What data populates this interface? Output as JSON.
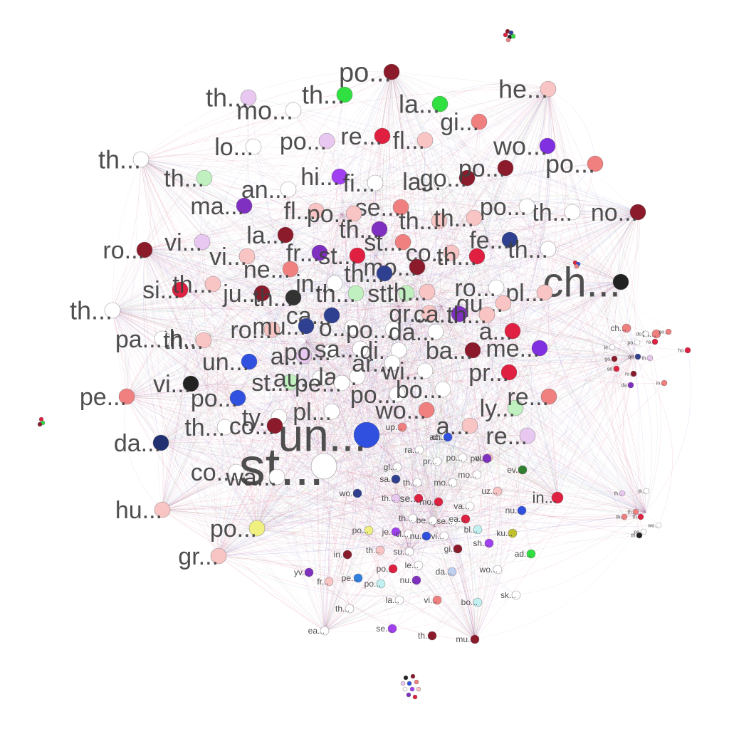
{
  "colors": {
    "background": "#ffffff",
    "label": "#404040",
    "node_stroke": "#5a5a5a"
  },
  "graph": {
    "nodes": [
      {
        "label": "st...",
        "size": 74,
        "color": "#ffffff"
      },
      {
        "label": "un...",
        "size": 64,
        "color": "#3050e0"
      },
      {
        "label": "ch...",
        "size": 58,
        "color": "#222222"
      },
      {
        "label": "po...",
        "size": 38,
        "color": "#8b1a2b"
      },
      {
        "label": "th...",
        "size": 36,
        "color": "#e8c8f0"
      },
      {
        "label": "mo...",
        "size": 36,
        "color": "#ffffff"
      },
      {
        "label": "th...",
        "size": 36,
        "color": "#30e040"
      },
      {
        "label": "la...",
        "size": 36,
        "color": "#30e040"
      },
      {
        "label": "he...",
        "size": 36,
        "color": "#f9c4c4"
      },
      {
        "label": "gi...",
        "size": 34,
        "color": "#f08080"
      },
      {
        "label": "re...",
        "size": 34,
        "color": "#e02040"
      },
      {
        "label": "fl...",
        "size": 34,
        "color": "#f9c4c4"
      },
      {
        "label": "lo...",
        "size": 34,
        "color": "#ffffff"
      },
      {
        "label": "po...",
        "size": 34,
        "color": "#e8c8f0"
      },
      {
        "label": "wo...",
        "size": 36,
        "color": "#8030e0"
      },
      {
        "label": "po...",
        "size": 36,
        "color": "#f08080"
      },
      {
        "label": "th...",
        "size": 36,
        "color": "#ffffff"
      },
      {
        "label": "th...",
        "size": 34,
        "color": "#c0f0c0"
      },
      {
        "label": "hi...",
        "size": 34,
        "color": "#a040f0"
      },
      {
        "label": "fi...",
        "size": 34,
        "color": "#ffffff"
      },
      {
        "label": "la...",
        "size": 34,
        "color": "#ffffff"
      },
      {
        "label": "go...",
        "size": 34,
        "color": "#8b1a2b"
      },
      {
        "label": "po...",
        "size": 34,
        "color": "#8b1a2b"
      },
      {
        "label": "an...",
        "size": 34,
        "color": "#ffffff"
      },
      {
        "label": "ma...",
        "size": 34,
        "color": "#8030c0"
      },
      {
        "label": "fl...",
        "size": 34,
        "color": "#f9c4c4"
      },
      {
        "label": "se...",
        "size": 34,
        "color": "#f08080"
      },
      {
        "label": "po...",
        "size": 34,
        "color": "#f9c4c4"
      },
      {
        "label": "th...",
        "size": 34,
        "color": "#ffffff"
      },
      {
        "label": "no...",
        "size": 34,
        "color": "#8b1a2b"
      },
      {
        "label": "po...",
        "size": 34,
        "color": "#ffffff"
      },
      {
        "label": "th...",
        "size": 34,
        "color": "#f9c4c4"
      },
      {
        "label": "th...",
        "size": 34,
        "color": "#8030c0"
      },
      {
        "label": "st...",
        "size": 34,
        "color": "#f08080"
      },
      {
        "label": "th...",
        "size": 34,
        "color": "#f9c4c4"
      },
      {
        "label": "ro...",
        "size": 34,
        "color": "#8b1a2b"
      },
      {
        "label": "vi...",
        "size": 34,
        "color": "#e8c8f0"
      },
      {
        "label": "la...",
        "size": 34,
        "color": "#8b1a2b"
      },
      {
        "label": "fr...",
        "size": 34,
        "color": "#8030c0"
      },
      {
        "label": "st...",
        "size": 34,
        "color": "#e02040"
      },
      {
        "label": "co...",
        "size": 34,
        "color": "#f9c4c4"
      },
      {
        "label": "th...",
        "size": 34,
        "color": "#e02040"
      },
      {
        "label": "fe...",
        "size": 34,
        "color": "#304090"
      },
      {
        "label": "th...",
        "size": 34,
        "color": "#ffffff"
      },
      {
        "label": "vi...",
        "size": 34,
        "color": "#f9c4c4"
      },
      {
        "label": "ne...",
        "size": 34,
        "color": "#f08080"
      },
      {
        "label": "mo...",
        "size": 34,
        "color": "#8b1a2b"
      },
      {
        "label": "th...",
        "size": 34,
        "color": "#304090"
      },
      {
        "label": "th...",
        "size": 36,
        "color": "#ffffff"
      },
      {
        "label": "si...",
        "size": 34,
        "color": "#e02040"
      },
      {
        "label": "th...",
        "size": 34,
        "color": "#f9c4c4"
      },
      {
        "label": "ju...",
        "size": 34,
        "color": "#8b1a2b"
      },
      {
        "label": "th...",
        "size": 34,
        "color": "#333333"
      },
      {
        "label": "in...",
        "size": 34,
        "color": "#ffffff"
      },
      {
        "label": "th...",
        "size": 34,
        "color": "#c0f0c0"
      },
      {
        "label": "st...",
        "size": 34,
        "color": "#c0f0c0"
      },
      {
        "label": "th...",
        "size": 34,
        "color": "#f9c4c4"
      },
      {
        "label": "ro...",
        "size": 34,
        "color": "#ffffff"
      },
      {
        "label": "pl...",
        "size": 34,
        "color": "#f9c4c4"
      },
      {
        "label": "qu...",
        "size": 34,
        "color": "#f9c4c4"
      },
      {
        "label": "ca...",
        "size": 34,
        "color": "#304090"
      },
      {
        "label": "gr...",
        "size": 34,
        "color": "#f9c4c4"
      },
      {
        "label": "ca...",
        "size": 34,
        "color": "#8030c0"
      },
      {
        "label": "th...",
        "size": 34,
        "color": "#f9c4c4"
      },
      {
        "label": "th...",
        "size": 34,
        "color": "#ffffff"
      },
      {
        "label": "ro...",
        "size": 34,
        "color": "#f9c4c4"
      },
      {
        "label": "mu...",
        "size": 34,
        "color": "#304090"
      },
      {
        "label": "o...",
        "size": 34,
        "color": "#ffffff"
      },
      {
        "label": "po...",
        "size": 34,
        "color": "#ffffff"
      },
      {
        "label": "da...",
        "size": 34,
        "color": "#ffffff"
      },
      {
        "label": "a...",
        "size": 34,
        "color": "#e02040"
      },
      {
        "label": "me...",
        "size": 34,
        "color": "#8030e0"
      },
      {
        "label": "pa...",
        "size": 34,
        "color": "#ffffff"
      },
      {
        "label": "th...",
        "size": 34,
        "color": "#f9c4c4"
      },
      {
        "label": "un...",
        "size": 34,
        "color": "#3050e0"
      },
      {
        "label": "a...",
        "size": 34,
        "color": "#e8c8f0"
      },
      {
        "label": "po...",
        "size": 34,
        "color": "#ffffff"
      },
      {
        "label": "sa...",
        "size": 34,
        "color": "#ffffff"
      },
      {
        "label": "di...",
        "size": 34,
        "color": "#ffffff"
      },
      {
        "label": "ba...",
        "size": 34,
        "color": "#8b1a2b"
      },
      {
        "label": "vi...",
        "size": 34,
        "color": "#222222"
      },
      {
        "label": "st...",
        "size": 34,
        "color": "#c0f0c0"
      },
      {
        "label": "au...",
        "size": 34,
        "color": "#ffffff"
      },
      {
        "label": "la...",
        "size": 34,
        "color": "#ffffff"
      },
      {
        "label": "ar...",
        "size": 34,
        "color": "#ffffff"
      },
      {
        "label": "wi...",
        "size": 34,
        "color": "#ffffff"
      },
      {
        "label": "pr...",
        "size": 34,
        "color": "#e02040"
      },
      {
        "label": "pe...",
        "size": 34,
        "color": "#f08080"
      },
      {
        "label": "po...",
        "size": 34,
        "color": "#3050e0"
      },
      {
        "label": "pe...",
        "size": 34,
        "color": "#ffffff"
      },
      {
        "label": "po...",
        "size": 34,
        "color": "#ffffff"
      },
      {
        "label": "bo...",
        "size": 34,
        "color": "#ffffff"
      },
      {
        "label": "ly...",
        "size": 34,
        "color": "#c0f0c0"
      },
      {
        "label": "re...",
        "size": 34,
        "color": "#f08080"
      },
      {
        "label": "ty...",
        "size": 34,
        "color": "#ffffff"
      },
      {
        "label": "pl...",
        "size": 34,
        "color": "#ffffff"
      },
      {
        "label": "wo...",
        "size": 34,
        "color": "#f08080"
      },
      {
        "label": "th...",
        "size": 34,
        "color": "#ffffff"
      },
      {
        "label": "co...",
        "size": 34,
        "color": "#8b1a2b"
      },
      {
        "label": "a...",
        "size": 34,
        "color": "#f9c4c4"
      },
      {
        "label": "re...",
        "size": 34,
        "color": "#e8c8f0"
      },
      {
        "label": "da...",
        "size": 34,
        "color": "#203070"
      },
      {
        "label": "co...",
        "size": 34,
        "color": "#ffffff"
      },
      {
        "label": "wa...",
        "size": 34,
        "color": "#ffffff"
      },
      {
        "label": "hu...",
        "size": 34,
        "color": "#f9c4c4"
      },
      {
        "label": "po...",
        "size": 34,
        "color": "#f0f080"
      },
      {
        "label": "gr...",
        "size": 34,
        "color": "#f9c4c4"
      },
      {
        "label": "in...",
        "size": 22,
        "color": "#e02040"
      },
      {
        "label": "up...",
        "size": 12,
        "color": "#f08080"
      },
      {
        "label": "ac...",
        "size": 12,
        "color": "#ffffff"
      },
      {
        "label": "ch...",
        "size": 12,
        "color": "#3050e0"
      },
      {
        "label": "ra...",
        "size": 12,
        "color": "#ffffff"
      },
      {
        "label": "pr...",
        "size": 12,
        "color": "#ffffff"
      },
      {
        "label": "po...",
        "size": 12,
        "color": "#ffffff"
      },
      {
        "label": "vi...",
        "size": 12,
        "color": "#f9c4c4"
      },
      {
        "label": "po...",
        "size": 12,
        "color": "#8030c0"
      },
      {
        "label": "gl...",
        "size": 12,
        "color": "#ffffff"
      },
      {
        "label": "sa...",
        "size": 12,
        "color": "#304090"
      },
      {
        "label": "th...",
        "size": 12,
        "color": "#ffffff"
      },
      {
        "label": "mo...",
        "size": 12,
        "color": "#ffffff"
      },
      {
        "label": "mo...",
        "size": 12,
        "color": "#ffffff"
      },
      {
        "label": "ev...",
        "size": 12,
        "color": "#308030"
      },
      {
        "label": "wo...",
        "size": 12,
        "color": "#304090"
      },
      {
        "label": "th...",
        "size": 12,
        "color": "#e8c8f0"
      },
      {
        "label": "se...",
        "size": 14,
        "color": "#e02040"
      },
      {
        "label": "mo...",
        "size": 12,
        "color": "#e02040"
      },
      {
        "label": "va...",
        "size": 12,
        "color": "#ffffff"
      },
      {
        "label": "uz...",
        "size": 12,
        "color": "#f9c4c4"
      },
      {
        "label": "nu...",
        "size": 12,
        "color": "#3050e0"
      },
      {
        "label": "th...",
        "size": 12,
        "color": "#ffffff"
      },
      {
        "label": "be...",
        "size": 12,
        "color": "#ffffff"
      },
      {
        "label": "se...",
        "size": 12,
        "color": "#ffffff"
      },
      {
        "label": "ea...",
        "size": 12,
        "color": "#e02040"
      },
      {
        "label": "po...",
        "size": 12,
        "color": "#f0f080"
      },
      {
        "label": "je...",
        "size": 12,
        "color": "#a040f0"
      },
      {
        "label": "cl...",
        "size": 12,
        "color": "#ffffff"
      },
      {
        "label": "nu...",
        "size": 12,
        "color": "#3050e0"
      },
      {
        "label": "vi...",
        "size": 12,
        "color": "#ffffff"
      },
      {
        "label": "bl...",
        "size": 12,
        "color": "#c0f0f0"
      },
      {
        "label": "ku...",
        "size": 12,
        "color": "#c0c030"
      },
      {
        "label": "in...",
        "size": 12,
        "color": "#8b1a2b"
      },
      {
        "label": "th...",
        "size": 12,
        "color": "#f9c4c4"
      },
      {
        "label": "su...",
        "size": 12,
        "color": "#ffffff"
      },
      {
        "label": "gi...",
        "size": 12,
        "color": "#8b1a2b"
      },
      {
        "label": "sh...",
        "size": 12,
        "color": "#a040f0"
      },
      {
        "label": "ad...",
        "size": 12,
        "color": "#30e040"
      },
      {
        "label": "po...",
        "size": 12,
        "color": "#e02040"
      },
      {
        "label": "le...",
        "size": 12,
        "color": "#ffffff"
      },
      {
        "label": "da...",
        "size": 12,
        "color": "#c0d0f0"
      },
      {
        "label": "wo...",
        "size": 12,
        "color": "#ffffff"
      },
      {
        "label": "yv...",
        "size": 12,
        "color": "#8030c0"
      },
      {
        "label": "fr...",
        "size": 12,
        "color": "#f9c4c4"
      },
      {
        "label": "pe...",
        "size": 12,
        "color": "#3080e0"
      },
      {
        "label": "nu...",
        "size": 12,
        "color": "#8030c0"
      },
      {
        "label": "po...",
        "size": 12,
        "color": "#c0f0f0"
      },
      {
        "label": "sk...",
        "size": 12,
        "color": "#ffffff"
      },
      {
        "label": "la...",
        "size": 12,
        "color": "#ffffff"
      },
      {
        "label": "vi...",
        "size": 12,
        "color": "#f08080"
      },
      {
        "label": "bo...",
        "size": 12,
        "color": "#c0f0f0"
      },
      {
        "label": "th...",
        "size": 12,
        "color": "#ffffff"
      },
      {
        "label": "ea...",
        "size": 12,
        "color": "#ffffff"
      },
      {
        "label": "se...",
        "size": 12,
        "color": "#a040f0"
      },
      {
        "label": "th...",
        "size": 12,
        "color": "#8b1a2b"
      },
      {
        "label": "mu...",
        "size": 12,
        "color": "#8b1a2b"
      },
      {
        "label": "ch...",
        "size": 12,
        "color": "#f08080"
      },
      {
        "label": "th...",
        "size": 12,
        "color": "#f08080"
      },
      {
        "label": "do...",
        "size": 7,
        "color": "#ffffff"
      },
      {
        "label": "po...",
        "size": 7,
        "color": "#f08080"
      },
      {
        "label": "le...",
        "size": 7,
        "color": "#ffffff"
      },
      {
        "label": "po...",
        "size": 7,
        "color": "#ffffff"
      },
      {
        "label": "ra...",
        "size": 7,
        "color": "#e02040"
      },
      {
        "label": "ho...",
        "size": 7,
        "color": "#e02040"
      },
      {
        "label": "qu...",
        "size": 7,
        "color": "#304090"
      },
      {
        "label": "th...",
        "size": 7,
        "color": "#e8c8f0"
      },
      {
        "label": "go...",
        "size": 7,
        "color": "#8b1a2b"
      },
      {
        "label": "se...",
        "size": 7,
        "color": "#e02040"
      },
      {
        "label": "ro...",
        "size": 7,
        "color": "#8b1a2b"
      },
      {
        "label": "in...",
        "size": 7,
        "color": "#f08080"
      },
      {
        "label": "da...",
        "size": 7,
        "color": "#8030c0"
      },
      {
        "label": "th...",
        "size": 7,
        "color": "#e8c8f0"
      },
      {
        "label": "th...",
        "size": 7,
        "color": "#ffffff"
      },
      {
        "label": "th...",
        "size": 7,
        "color": "#f08080"
      },
      {
        "label": "th...",
        "size": 7,
        "color": "#e02040"
      },
      {
        "label": "th...",
        "size": 7,
        "color": "#f08080"
      },
      {
        "label": "wo...",
        "size": 7,
        "color": "#ffffff"
      },
      {
        "label": "th...",
        "size": 7,
        "color": "#222222"
      },
      {
        "label": "po...",
        "size": 7,
        "color": "#ffffff"
      },
      {
        "label": "se...",
        "size": 7,
        "color": "#8b1a2b"
      },
      {
        "label": "th...",
        "size": 7,
        "color": "#304090"
      }
    ]
  }
}
